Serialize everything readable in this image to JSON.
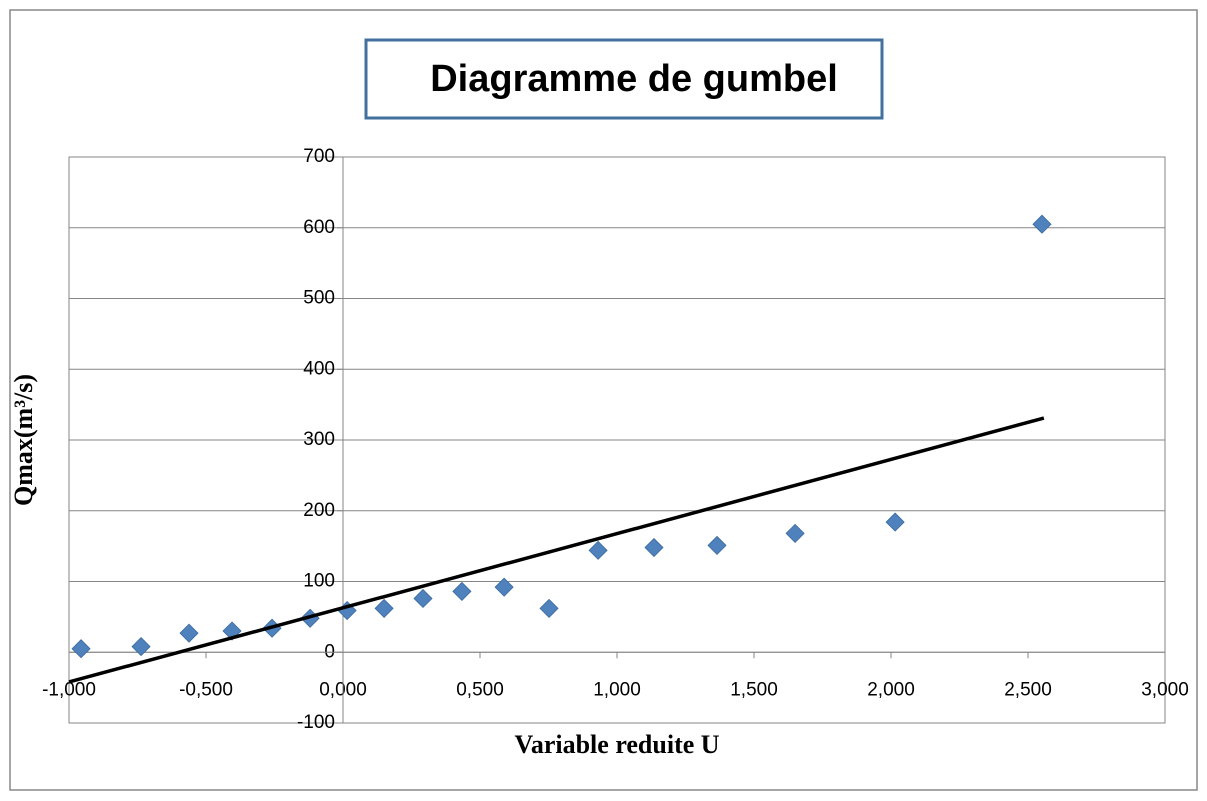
{
  "chart_data": {
    "type": "scatter",
    "title": "Diagramme de gumbel",
    "xlabel": "Variable reduite U",
    "ylabel": "Qmax(m³/s)",
    "xlim": [
      -1,
      3
    ],
    "ylim": [
      -100,
      700
    ],
    "xticks": [
      {
        "value": -1,
        "label": "-1,000"
      },
      {
        "value": -0.5,
        "label": "-0,500"
      },
      {
        "value": 0,
        "label": "0,000"
      },
      {
        "value": 0.5,
        "label": "0,500"
      },
      {
        "value": 1,
        "label": "1,000"
      },
      {
        "value": 1.5,
        "label": "1,500"
      },
      {
        "value": 2,
        "label": "2,000"
      },
      {
        "value": 2.5,
        "label": "2,500"
      },
      {
        "value": 3,
        "label": "3,000"
      }
    ],
    "yticks": [
      -100,
      0,
      100,
      200,
      300,
      400,
      500,
      600,
      700
    ],
    "grid": true,
    "series": [
      {
        "mode": "markers",
        "color": "#4f81bd",
        "x": [
          -0.956,
          -0.737,
          -0.562,
          -0.405,
          -0.259,
          -0.12,
          0.015,
          0.15,
          0.292,
          0.434,
          0.588,
          0.752,
          0.931,
          1.135,
          1.365,
          1.65,
          2.015,
          2.551
        ],
        "values": [
          5,
          8,
          27,
          30,
          34,
          48,
          59,
          62,
          76,
          86,
          92,
          62,
          144,
          148,
          151,
          168,
          184,
          605
        ]
      },
      {
        "mode": "line",
        "color": "#000000",
        "x": [
          -1,
          2.558
        ],
        "values": [
          -42,
          331
        ]
      }
    ]
  }
}
